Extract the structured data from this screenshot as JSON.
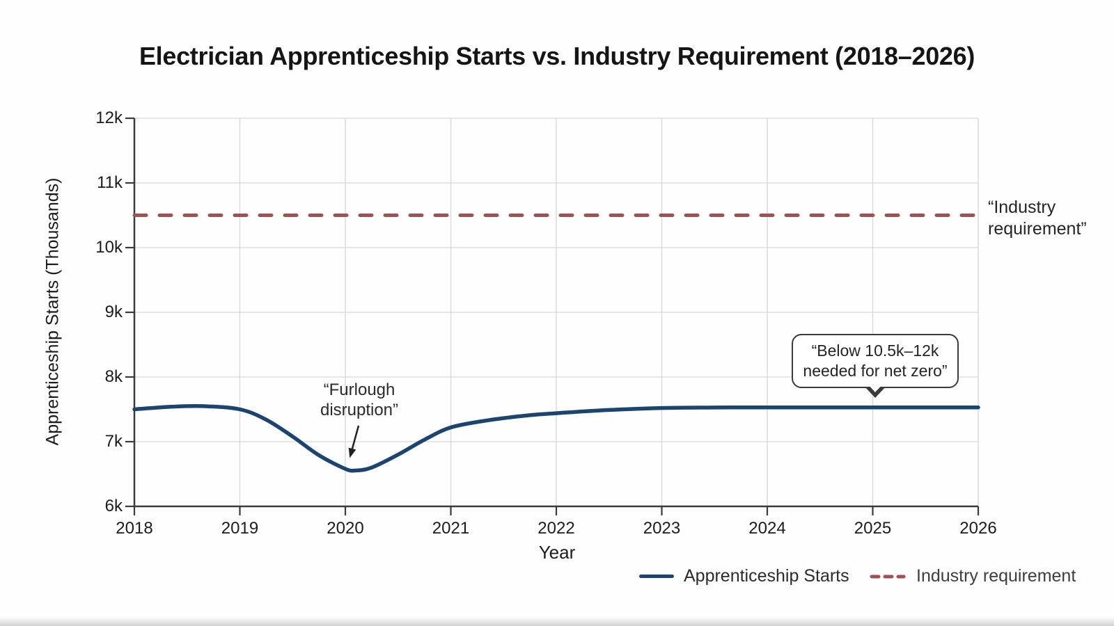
{
  "chart_data": {
    "type": "line",
    "title": "Electrician Apprenticeship Starts vs. Industry Requirement (2018–2026)",
    "xlabel": "Year",
    "ylabel": "Apprenticeship Starts (Thousands)",
    "xlim": [
      2018,
      2026
    ],
    "ylim": [
      6000,
      12000
    ],
    "x_tick_values": [
      2018,
      2019,
      2020,
      2021,
      2022,
      2023,
      2024,
      2025,
      2026
    ],
    "x_ticks": [
      "2018",
      "2019",
      "2020",
      "2021",
      "2022",
      "2023",
      "2024",
      "2025",
      "2026"
    ],
    "y_tick_values": [
      6000,
      7000,
      8000,
      9000,
      10000,
      11000,
      12000
    ],
    "y_ticks": [
      "6k",
      "7k",
      "8k",
      "9k",
      "10k",
      "11k",
      "12k"
    ],
    "grid": true,
    "legend_position": "bottom-right",
    "series": [
      {
        "name": "Apprenticeship Starts",
        "color": "#1c4470",
        "style": "solid",
        "x": [
          2018.0,
          2018.35,
          2018.65,
          2019.0,
          2019.25,
          2019.5,
          2019.75,
          2020.0,
          2020.1,
          2020.25,
          2020.5,
          2020.75,
          2021.0,
          2021.35,
          2021.75,
          2022.0,
          2022.5,
          2023.0,
          2023.5,
          2024.0,
          2025.0,
          2026.0
        ],
        "values": [
          7500,
          7540,
          7550,
          7500,
          7340,
          7080,
          6790,
          6580,
          6555,
          6600,
          6800,
          7030,
          7220,
          7330,
          7410,
          7440,
          7490,
          7520,
          7528,
          7530,
          7530,
          7530
        ]
      },
      {
        "name": "Industry requirement",
        "color": "#a15151",
        "style": "dashed",
        "x": [
          2018,
          2026
        ],
        "values": [
          10500,
          10500
        ]
      }
    ],
    "annotations": [
      {
        "text": "“Furlough disruption”",
        "target": "dip at 2020 (~6.55k)"
      },
      {
        "text": "“Below 10.5k–12k needed for net zero”",
        "target": "2025 point on solid line (~7.5k)"
      },
      {
        "text": "“Industry requirement”",
        "target": "right end of dashed 10.5k line"
      }
    ]
  },
  "labels": {
    "furlough": [
      "“Furlough",
      "disruption”"
    ],
    "callout": [
      "“Below 10.5k–12k",
      "needed for net zero”"
    ],
    "industry": [
      "“Industry",
      "requirement”"
    ]
  }
}
